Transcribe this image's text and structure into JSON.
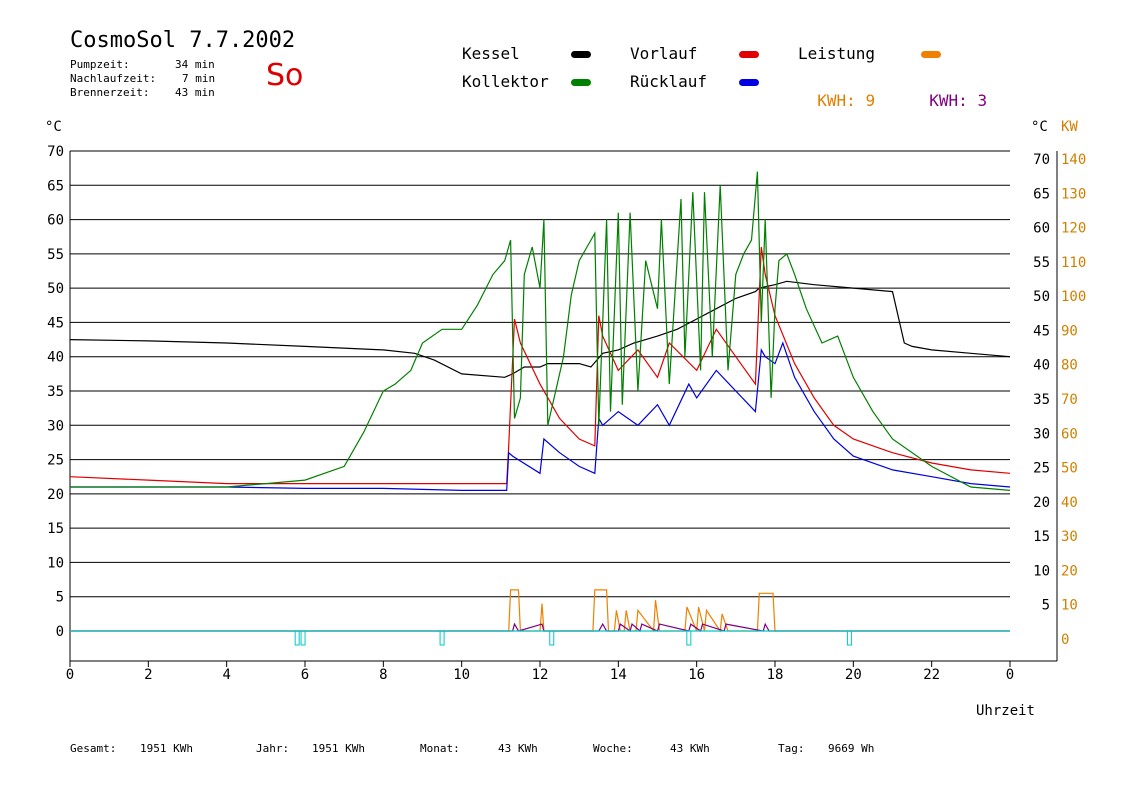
{
  "header": {
    "title": "CosmoSol 7.7.2002",
    "day": "So",
    "stats": [
      {
        "label": "Pumpzeit:",
        "value": "34 min"
      },
      {
        "label": "Nachlaufzeit:",
        "value": "7 min"
      },
      {
        "label": "Brennerzeit:",
        "value": "43 min"
      }
    ]
  },
  "legend": {
    "items": [
      {
        "label": "Kessel",
        "color": "#000000"
      },
      {
        "label": "Vorlauf",
        "color": "#e00000"
      },
      {
        "label": "Leistung",
        "color": "#f08000"
      },
      {
        "label": "Kollektor",
        "color": "#008000"
      },
      {
        "label": "Rücklauf",
        "color": "#0000e0"
      }
    ],
    "kwh1": {
      "label": "KWH:",
      "value": "9",
      "color": "#e08000"
    },
    "kwh2": {
      "label": "KWH:",
      "value": "3",
      "color": "#800080"
    }
  },
  "footer": [
    {
      "label": "Gesamt:",
      "value": "1951 KWh"
    },
    {
      "label": "Jahr:",
      "value": "1951 KWh"
    },
    {
      "label": "Monat:",
      "value": "43 KWh"
    },
    {
      "label": "Woche:",
      "value": "43 KWh"
    },
    {
      "label": "Tag:",
      "value": "9669 Wh"
    }
  ],
  "chart_data": {
    "type": "line",
    "xlabel": "Uhrzeit",
    "ylabel_left": "°C",
    "ylabel_right_1": "°C",
    "ylabel_right_2": "KW",
    "xlim": [
      0,
      24
    ],
    "ylim": [
      0,
      70
    ],
    "x_ticks": [
      "0",
      "2",
      "4",
      "6",
      "8",
      "10",
      "12",
      "14",
      "16",
      "18",
      "20",
      "22",
      "0"
    ],
    "y_ticks": [
      0,
      5,
      10,
      15,
      20,
      25,
      30,
      35,
      40,
      45,
      50,
      55,
      60,
      65,
      70
    ],
    "y2_ticks": [
      0,
      10,
      20,
      30,
      40,
      50,
      60,
      70,
      80,
      90,
      100,
      110,
      120,
      130,
      140
    ],
    "grid": true,
    "series": [
      {
        "name": "Kessel",
        "color": "#000000",
        "x": [
          0,
          2,
          4,
          6,
          8,
          8.8,
          9.3,
          10,
          11.1,
          11.3,
          11.6,
          12,
          12.2,
          13,
          13.3,
          13.6,
          14,
          14.4,
          15,
          15.5,
          16,
          16.5,
          17,
          17.5,
          17.6,
          18,
          18.3,
          19,
          20,
          21,
          21.3,
          21.5,
          22,
          23,
          24
        ],
        "y": [
          42.5,
          42.3,
          42,
          41.5,
          41,
          40.5,
          39.5,
          37.5,
          37,
          37.5,
          38.5,
          38.5,
          39,
          39,
          38.5,
          40.5,
          41,
          42,
          43,
          44,
          45.5,
          47,
          48.5,
          49.5,
          50,
          50.5,
          51,
          50.5,
          50,
          49.5,
          42,
          41.5,
          41,
          40.5,
          40
        ]
      },
      {
        "name": "Vorlauf",
        "color": "#e00000",
        "x": [
          0,
          2,
          4,
          6,
          8,
          10,
          11.15,
          11.2,
          11.35,
          11.5,
          12,
          12.5,
          13,
          13.4,
          13.5,
          13.6,
          14,
          14.5,
          15,
          15.3,
          16,
          16.5,
          17,
          17.5,
          17.65,
          17.75,
          18,
          18.5,
          19,
          19.5,
          20,
          21,
          22,
          23,
          24
        ],
        "y": [
          22.5,
          22,
          21.5,
          21.5,
          21.5,
          21.5,
          21.5,
          27,
          45.5,
          42,
          36,
          31,
          28,
          27,
          46,
          43,
          38,
          41,
          37,
          42,
          38,
          44,
          40,
          36,
          56,
          52,
          46,
          39,
          34,
          30,
          28,
          26,
          24.5,
          23.5,
          23
        ]
      },
      {
        "name": "Rücklauf",
        "color": "#0000e0",
        "x": [
          0,
          2,
          4,
          6,
          8,
          10,
          11.15,
          11.2,
          11.3,
          12,
          12.1,
          12.5,
          13,
          13.4,
          13.5,
          13.6,
          14,
          14.5,
          15,
          15.3,
          15.8,
          16,
          16.5,
          17,
          17.5,
          17.65,
          17.75,
          18,
          18.2,
          18.5,
          19,
          19.5,
          20,
          21,
          22,
          23,
          24
        ],
        "y": [
          21,
          21,
          21,
          20.8,
          20.8,
          20.5,
          20.5,
          26,
          25.5,
          23,
          28,
          26,
          24,
          23,
          31,
          30,
          32,
          30,
          33,
          30,
          36,
          34,
          38,
          35,
          32,
          41,
          40,
          39,
          42,
          37,
          32,
          28,
          25.5,
          23.5,
          22.5,
          21.5,
          21
        ]
      },
      {
        "name": "Kollektor",
        "color": "#008000",
        "x": [
          0,
          1,
          2,
          3,
          4,
          5,
          6,
          7,
          7.5,
          8,
          8.3,
          8.7,
          9,
          9.5,
          10,
          10.4,
          10.8,
          11.1,
          11.25,
          11.35,
          11.5,
          11.6,
          11.8,
          12,
          12.1,
          12.2,
          12.4,
          12.6,
          12.8,
          13,
          13.2,
          13.4,
          13.5,
          13.7,
          13.8,
          14,
          14.1,
          14.3,
          14.5,
          14.7,
          15,
          15.1,
          15.3,
          15.6,
          15.7,
          15.9,
          16.1,
          16.2,
          16.4,
          16.6,
          16.8,
          17,
          17.2,
          17.4,
          17.55,
          17.65,
          17.75,
          17.9,
          18,
          18.1,
          18.3,
          18.5,
          18.8,
          19.2,
          19.6,
          20,
          20.5,
          21,
          22,
          23,
          24
        ],
        "y": [
          21,
          21,
          21,
          21,
          21,
          21.5,
          22,
          24,
          29,
          35,
          36,
          38,
          42,
          44,
          44,
          47.5,
          52,
          54,
          57,
          31,
          34,
          52,
          56,
          50,
          60,
          30,
          35,
          40,
          49,
          54,
          56,
          58,
          30,
          60,
          32,
          61,
          33,
          61,
          35,
          54,
          47,
          60,
          36,
          63,
          40,
          64,
          38,
          64,
          40,
          65,
          38,
          52,
          55,
          57,
          67,
          45,
          60,
          34,
          47,
          54,
          55,
          52,
          47,
          42,
          43,
          37,
          32,
          28,
          24,
          21,
          20.5
        ]
      },
      {
        "name": "Leistung",
        "color": "#f08000",
        "axis": "KW",
        "x": [
          0,
          11.2,
          11.25,
          11.45,
          11.5,
          12,
          12.05,
          12.1,
          13.35,
          13.4,
          13.7,
          13.75,
          13.9,
          13.95,
          14.05,
          14.15,
          14.2,
          14.3,
          14.45,
          14.5,
          14.9,
          14.95,
          15.05,
          15.7,
          15.75,
          16,
          16.05,
          16.2,
          16.25,
          16.6,
          16.65,
          16.8,
          17.55,
          17.6,
          17.95,
          18,
          24
        ],
        "y": [
          0,
          0,
          12,
          12,
          0,
          0,
          8,
          0,
          0,
          12,
          12,
          0,
          0,
          6,
          0,
          0,
          6,
          0,
          0,
          6,
          0,
          9,
          0,
          0,
          7,
          0,
          7,
          0,
          6,
          0,
          5,
          0,
          0,
          11,
          11,
          0,
          0
        ]
      },
      {
        "name": "KWH 3",
        "color": "#800080",
        "axis": "KW",
        "x": [
          0,
          11.3,
          11.35,
          11.45,
          12.05,
          12.1,
          13.5,
          13.6,
          13.7,
          14,
          14.05,
          14.3,
          14.35,
          14.55,
          14.6,
          15,
          15.05,
          15.8,
          15.85,
          16.1,
          16.15,
          16.7,
          16.75,
          17.7,
          17.75,
          17.85,
          24
        ],
        "y": [
          0,
          0,
          2,
          0,
          2,
          0,
          0,
          2,
          0,
          0,
          2,
          0,
          2,
          0,
          2,
          0,
          2,
          0,
          2,
          0,
          2,
          0,
          2,
          0,
          2,
          0,
          0
        ]
      },
      {
        "name": "Pumpe",
        "color": "#00c8c8",
        "type": "step-markers",
        "x": [
          0,
          5.8,
          5.95,
          9.5,
          12.3,
          15.8,
          19.9,
          24
        ],
        "y": [
          0,
          0,
          0,
          0,
          0,
          0,
          0,
          0
        ]
      }
    ]
  }
}
